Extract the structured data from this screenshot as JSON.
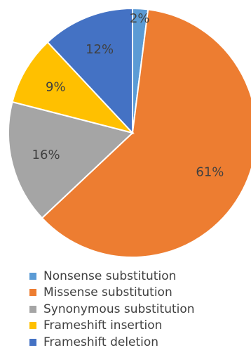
{
  "chart_data": {
    "type": "pie",
    "title": "",
    "start_angle_deg": 0,
    "direction": "clockwise",
    "legend_position": "bottom",
    "slices": [
      {
        "label": "Nonsense substitution",
        "value": 2,
        "display": "2%",
        "color": "#5B9BD5"
      },
      {
        "label": "Missense substitution",
        "value": 61,
        "display": "61%",
        "color": "#ED7D31"
      },
      {
        "label": "Synonymous substitution",
        "value": 16,
        "display": "16%",
        "color": "#A5A5A5"
      },
      {
        "label": "Frameshift insertion",
        "value": 9,
        "display": "9%",
        "color": "#FFC000"
      },
      {
        "label": "Frameshift deletion",
        "value": 12,
        "display": "12%",
        "color": "#4472C4"
      }
    ]
  }
}
